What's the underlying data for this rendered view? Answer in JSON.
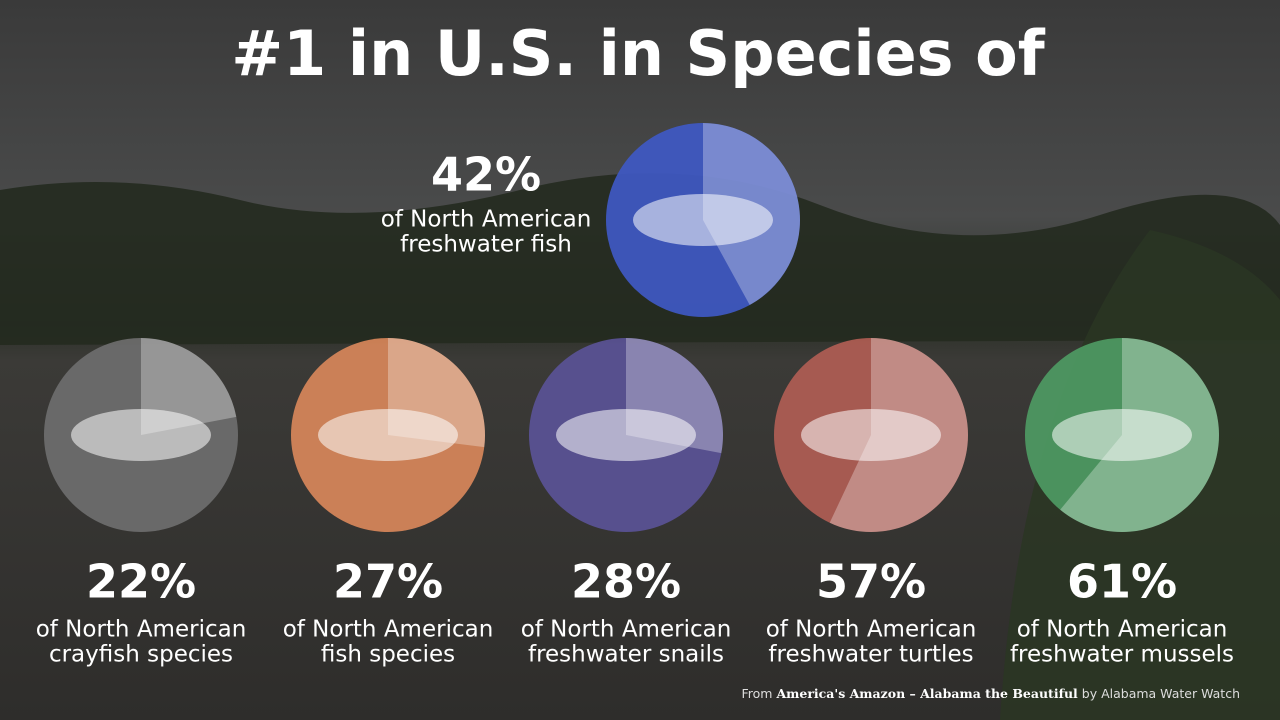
{
  "title": "#1 in U.S. in Species of",
  "items": [
    {
      "value": 42,
      "value_label": "42%",
      "caption": [
        "of North American",
        "freshwater fish"
      ],
      "color": "#3f59c4"
    },
    {
      "value": 22,
      "value_label": "22%",
      "caption": [
        "of North American",
        "crayfish species"
      ],
      "color": "#6e6e6e"
    },
    {
      "value": 27,
      "value_label": "27%",
      "caption": [
        "of North American",
        "fish species"
      ],
      "color": "#d8875a"
    },
    {
      "value": 28,
      "value_label": "28%",
      "caption": [
        "of North American",
        "freshwater snails"
      ],
      "color": "#5a5296"
    },
    {
      "value": 57,
      "value_label": "57%",
      "caption": [
        "of North American",
        "freshwater turtles"
      ],
      "color": "#b05d54"
    },
    {
      "value": 61,
      "value_label": "61%",
      "caption": [
        "of North American",
        "freshwater mussels"
      ],
      "color": "#4e9a63"
    }
  ],
  "credit": {
    "prefix": "From",
    "work": "America's Amazon – Alabama the Beautiful",
    "suffix": "by Alabama Water Watch"
  }
}
